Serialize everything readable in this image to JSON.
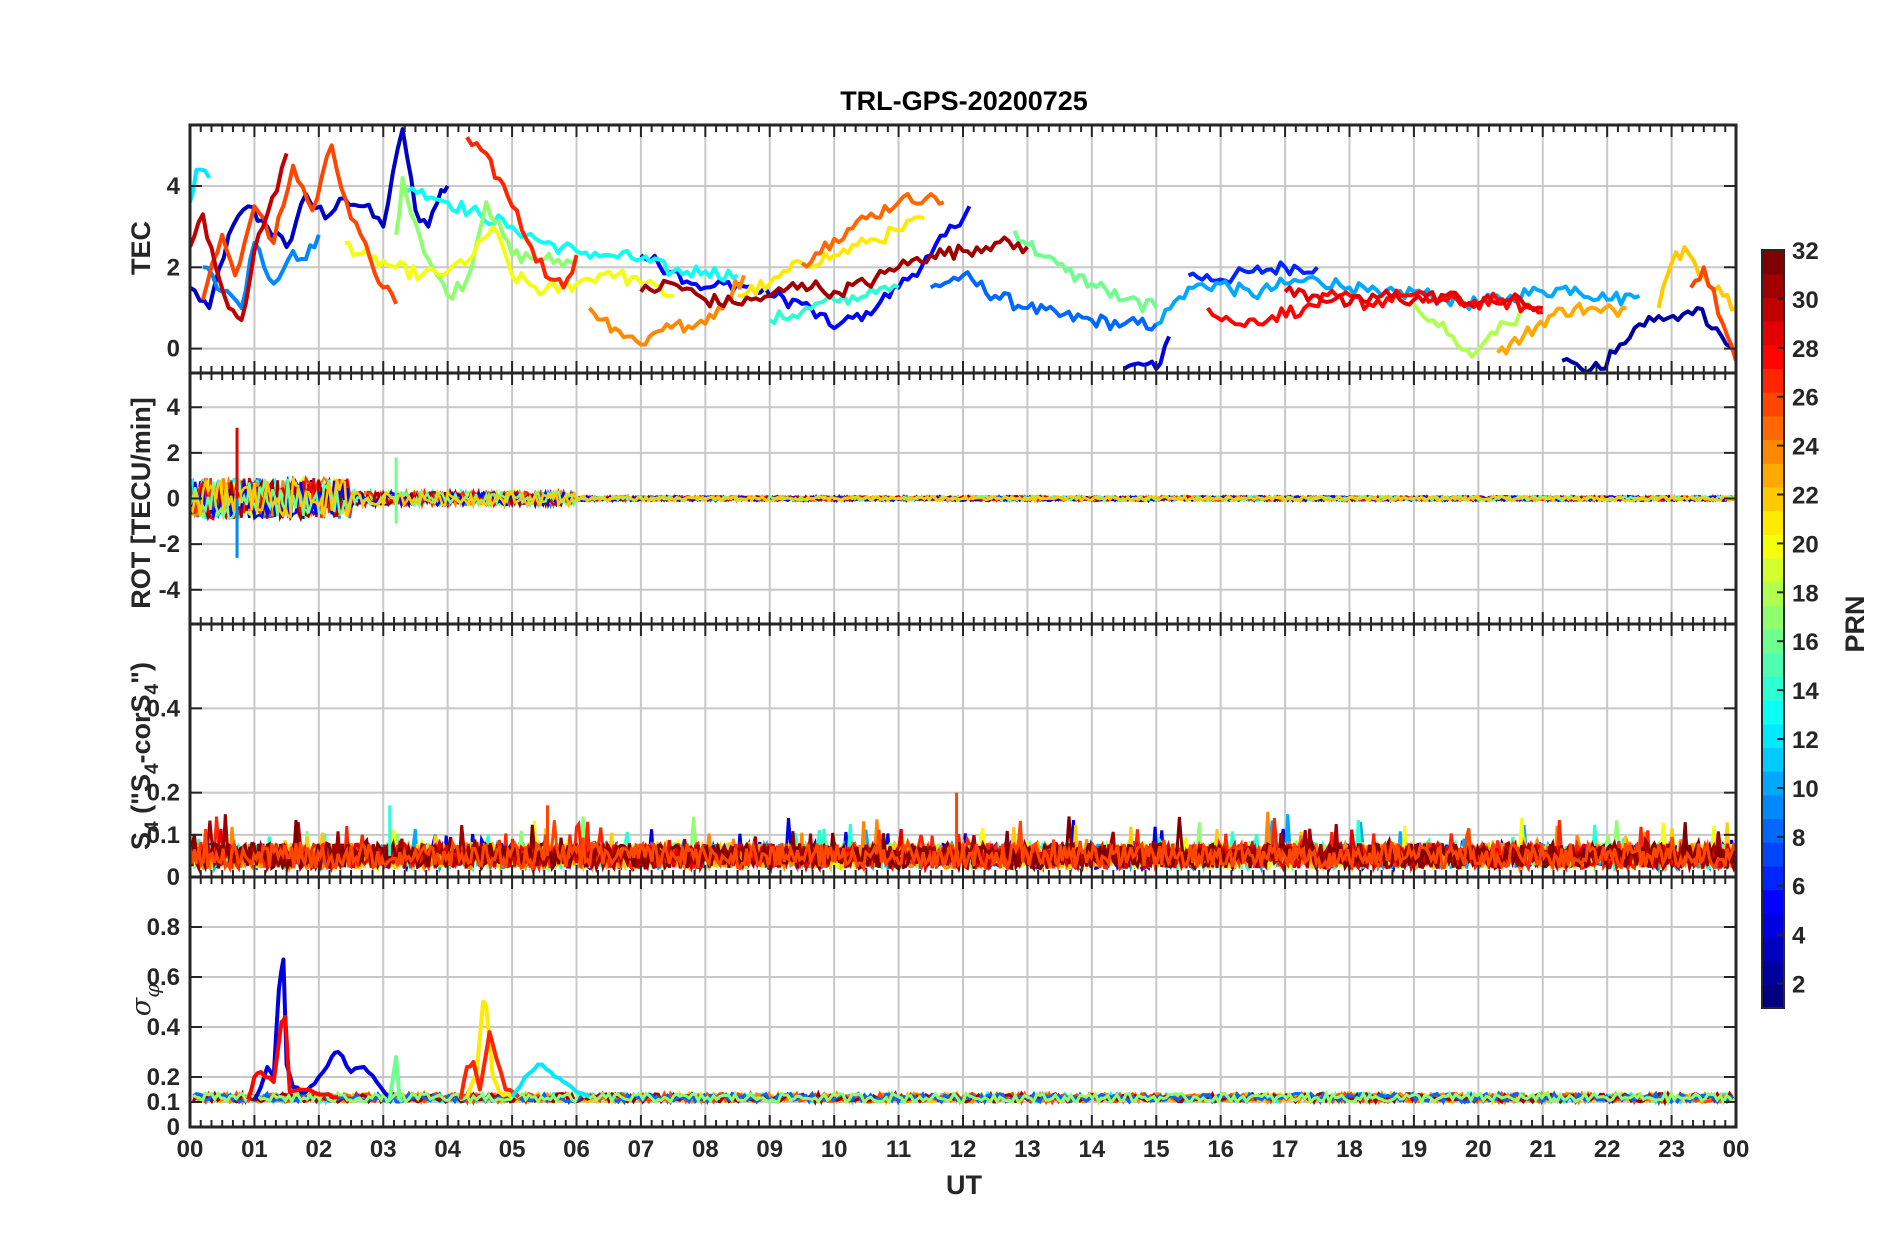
{
  "chart_data": {
    "type": "line",
    "title": "TRL-GPS-20200725",
    "xlabel": "UT",
    "x_tick_labels": [
      "00",
      "01",
      "02",
      "03",
      "04",
      "05",
      "06",
      "07",
      "08",
      "09",
      "10",
      "11",
      "12",
      "13",
      "14",
      "15",
      "16",
      "17",
      "18",
      "19",
      "20",
      "21",
      "22",
      "23",
      "00"
    ],
    "xlim": [
      0,
      24
    ],
    "grid": true,
    "panels": [
      {
        "id": "tec",
        "ylabel": "TEC",
        "ylim": [
          -0.6,
          5.5
        ],
        "yticks": [
          0,
          2,
          4
        ],
        "tick_labels": [
          "0",
          "2",
          "4"
        ],
        "series": [
          {
            "prn": 3,
            "x": [
              0.0,
              0.3,
              0.6,
              0.9,
              1.2,
              1.5,
              1.8,
              2.1,
              2.4,
              2.7,
              3.0,
              3.3,
              3.5,
              3.7,
              3.9,
              4.0
            ],
            "y": [
              1.5,
              1.0,
              2.8,
              3.5,
              3.0,
              2.5,
              3.8,
              3.2,
              3.7,
              3.5,
              3.0,
              5.4,
              3.4,
              3.0,
              3.9,
              4.0
            ]
          },
          {
            "prn": 5,
            "x": [
              7.0,
              7.5,
              8.0,
              8.5,
              9.0,
              9.5,
              10.0,
              10.5,
              11.0,
              11.5,
              12.1
            ],
            "y": [
              2.3,
              1.9,
              1.5,
              1.6,
              1.3,
              1.1,
              0.5,
              0.9,
              1.5,
              2.3,
              3.5
            ]
          },
          {
            "prn": 4,
            "x": [
              14.5,
              14.8,
              15.0,
              15.2
            ],
            "y": [
              -0.5,
              -0.4,
              -0.5,
              0.3
            ]
          },
          {
            "prn": 6,
            "x": [
              15.5,
              16.0,
              16.5,
              17.0,
              17.5
            ],
            "y": [
              1.8,
              1.7,
              1.9,
              2.0,
              2.0
            ]
          },
          {
            "prn": 2,
            "x": [
              21.3,
              21.6,
              21.9,
              22.2,
              22.5,
              22.8,
              23.1,
              23.4,
              23.7,
              24.0
            ],
            "y": [
              -0.3,
              -0.5,
              -0.5,
              0.1,
              0.6,
              0.8,
              0.7,
              1.0,
              0.5,
              -0.2
            ]
          },
          {
            "prn": 8,
            "x": [
              11.5,
              12.0,
              12.5,
              13.0,
              13.5,
              14.0,
              14.5,
              15.0
            ],
            "y": [
              1.5,
              1.8,
              1.3,
              1.0,
              0.8,
              0.7,
              0.6,
              0.6
            ]
          },
          {
            "prn": 9,
            "x": [
              0.2,
              0.5,
              0.8,
              1.0,
              1.3,
              1.6,
              1.8,
              2.0
            ],
            "y": [
              2.0,
              1.4,
              1.0,
              2.6,
              1.6,
              2.4,
              2.2,
              2.8
            ]
          },
          {
            "prn": 10,
            "x": [
              15.0,
              15.5,
              16.0,
              16.5,
              17.0,
              17.5,
              18.0,
              18.5,
              19.0,
              19.5,
              20.0,
              20.5,
              21.0,
              21.5,
              22.0,
              22.5
            ],
            "y": [
              0.6,
              1.5,
              1.6,
              1.3,
              1.6,
              1.7,
              1.5,
              1.3,
              1.4,
              1.2,
              1.1,
              1.3,
              1.4,
              1.5,
              1.2,
              1.3
            ]
          },
          {
            "prn": 12,
            "x": [
              0.0,
              0.1,
              0.3
            ],
            "y": [
              3.6,
              4.4,
              4.2
            ]
          },
          {
            "prn": 13,
            "x": [
              3.3,
              3.6,
              4.0,
              4.5,
              5.0,
              5.5,
              6.0,
              6.5,
              7.0,
              7.5,
              8.0,
              8.5
            ],
            "y": [
              4.0,
              3.9,
              3.6,
              3.3,
              3.0,
              2.6,
              2.4,
              2.3,
              2.2,
              1.9,
              1.9,
              1.8
            ]
          },
          {
            "prn": 14,
            "x": [
              9.0,
              9.5,
              10.0,
              10.5,
              11.0
            ],
            "y": [
              0.7,
              0.9,
              1.2,
              1.3,
              1.5
            ]
          },
          {
            "prn": 17,
            "x": [
              3.2,
              3.3,
              3.5,
              3.7,
              4.0,
              4.3,
              4.6,
              5.0,
              5.5,
              6.0
            ],
            "y": [
              2.8,
              4.2,
              3.1,
              2.2,
              1.3,
              1.7,
              3.6,
              2.3,
              2.2,
              2.1
            ]
          },
          {
            "prn": 16,
            "x": [
              12.8,
              13.2,
              13.6,
              14.0,
              14.5,
              15.0
            ],
            "y": [
              2.9,
              2.3,
              1.9,
              1.6,
              1.2,
              1.0
            ]
          },
          {
            "prn": 18,
            "x": [
              19.0,
              19.3,
              19.6,
              19.9,
              20.2,
              20.5,
              20.8
            ],
            "y": [
              1.1,
              0.7,
              0.3,
              -0.2,
              0.4,
              0.6,
              1.1
            ]
          },
          {
            "prn": 20,
            "x": [
              2.4,
              2.8,
              3.2,
              3.6,
              4.0,
              4.4,
              4.7,
              5.0,
              5.5,
              6.0,
              6.5,
              7.0,
              7.5
            ],
            "y": [
              2.6,
              2.2,
              2.0,
              1.8,
              1.9,
              2.3,
              3.0,
              1.8,
              1.4,
              1.6,
              1.9,
              1.6,
              1.3
            ]
          },
          {
            "prn": 21,
            "x": [
              8.5,
              9.0,
              9.5,
              10.0,
              10.5,
              11.0,
              11.4
            ],
            "y": [
              1.3,
              1.6,
              2.1,
              2.3,
              2.6,
              2.9,
              3.2
            ]
          },
          {
            "prn": 22,
            "x": [
              22.8,
              23.0,
              23.2,
              23.5,
              23.8,
              24.0
            ],
            "y": [
              1.0,
              2.1,
              2.5,
              1.8,
              1.3,
              1.0
            ]
          },
          {
            "prn": 24,
            "x": [
              6.2,
              6.6,
              7.0,
              7.4,
              7.8,
              8.2,
              8.6
            ],
            "y": [
              1.0,
              0.5,
              0.1,
              0.6,
              0.5,
              1.0,
              1.8
            ]
          },
          {
            "prn": 23,
            "x": [
              20.3,
              20.7,
              21.1,
              21.5,
              21.9,
              22.3
            ],
            "y": [
              -0.1,
              0.3,
              0.8,
              1.0,
              0.9,
              1.0
            ]
          },
          {
            "prn": 25,
            "x": [
              9.5,
              10.0,
              10.5,
              11.0,
              11.5,
              11.7
            ],
            "y": [
              2.1,
              2.7,
              3.2,
              3.6,
              3.8,
              3.6
            ]
          },
          {
            "prn": 26,
            "x": [
              0.2,
              0.5,
              0.7,
              1.0,
              1.3,
              1.6,
              1.9,
              2.2,
              2.5,
              2.8,
              3.0,
              3.2
            ],
            "y": [
              1.2,
              2.8,
              1.8,
              3.5,
              2.6,
              4.5,
              3.4,
              5.0,
              3.2,
              2.2,
              1.5,
              1.1
            ]
          },
          {
            "prn": 27,
            "x": [
              4.3,
              4.6,
              5.0,
              5.3,
              5.6,
              5.8,
              6.0
            ],
            "y": [
              5.2,
              4.8,
              3.5,
              2.5,
              1.7,
              1.5,
              2.3
            ]
          },
          {
            "prn": 28,
            "x": [
              15.8,
              16.3,
              16.8,
              17.3,
              17.8,
              18.3,
              18.8,
              19.3,
              19.8,
              20.3,
              20.8,
              21.0
            ],
            "y": [
              1.0,
              0.6,
              0.8,
              1.0,
              1.3,
              1.1,
              1.3,
              1.2,
              1.1,
              1.2,
              1.0,
              0.9
            ]
          },
          {
            "prn": 26,
            "x": [
              23.3,
              23.5,
              23.8,
              24.0
            ],
            "y": [
              1.5,
              2.0,
              0.6,
              -0.3
            ]
          },
          {
            "prn": 30,
            "x": [
              0.0,
              0.2,
              0.4,
              0.6,
              0.8,
              1.0,
              1.2,
              1.5
            ],
            "y": [
              2.5,
              3.3,
              2.0,
              1.0,
              0.7,
              2.4,
              3.3,
              4.8
            ]
          },
          {
            "prn": 31,
            "x": [
              7.0,
              7.5,
              8.0,
              8.5,
              9.0,
              9.5,
              10.0,
              10.5,
              11.0,
              11.5,
              12.0,
              12.5,
              13.0
            ],
            "y": [
              1.4,
              1.6,
              1.2,
              1.1,
              1.3,
              1.6,
              1.4,
              1.6,
              2.0,
              2.3,
              2.4,
              2.6,
              2.5
            ]
          },
          {
            "prn": 29,
            "x": [
              17.0,
              17.5,
              18.0,
              18.5,
              19.0,
              19.5,
              20.0,
              20.5,
              21.0
            ],
            "y": [
              1.4,
              1.3,
              1.1,
              1.3,
              1.2,
              1.3,
              1.1,
              1.2,
              1.0
            ]
          }
        ]
      },
      {
        "id": "rot",
        "ylabel": "ROT [TECU/min]",
        "ylim": [
          -5.5,
          5.5
        ],
        "yticks": [
          -4,
          -2,
          0,
          2,
          4
        ],
        "tick_labels": [
          "-4",
          "-2",
          "0",
          "2",
          "4"
        ],
        "note_spikes": [
          {
            "prn": 29,
            "x": 0.73,
            "y": 3.1
          },
          {
            "prn": 9,
            "x": 0.73,
            "y": -2.6
          },
          {
            "prn": 16,
            "x": 3.2,
            "y": 1.8
          },
          {
            "prn": 16,
            "x": 3.2,
            "y": -1.1
          }
        ]
      },
      {
        "id": "s4",
        "ylabel": "S4 (\"S4-corS4\")",
        "ylim": [
          0,
          0.6
        ],
        "yticks": [
          0,
          0.1,
          0.2,
          0.4
        ],
        "tick_labels": [
          "0",
          "0.1",
          "0.2",
          "0.4"
        ],
        "baseline": 0.05,
        "band": 0.06,
        "notable_peaks": [
          {
            "prn": 26,
            "x": 11.9,
            "y": 0.2
          },
          {
            "prn": 26,
            "x": 5.55,
            "y": 0.17
          },
          {
            "prn": 14,
            "x": 3.1,
            "y": 0.17
          }
        ]
      },
      {
        "id": "sigma_phi",
        "ylabel": "σ φ",
        "ylim": [
          0,
          1.0
        ],
        "yticks": [
          0,
          0.1,
          0.2,
          0.4,
          0.6,
          0.8
        ],
        "tick_labels": [
          "0",
          "0.1",
          "0.2",
          "0.4",
          "0.6",
          "0.8"
        ],
        "baseline": 0.11,
        "series": [
          {
            "prn": 4,
            "x": [
              1.0,
              1.1,
              1.2,
              1.3,
              1.38,
              1.45,
              1.5,
              1.6,
              1.8,
              2.0,
              2.2,
              2.3,
              2.5,
              2.7,
              2.9,
              3.1
            ],
            "y": [
              0.11,
              0.16,
              0.24,
              0.2,
              0.55,
              0.67,
              0.25,
              0.16,
              0.14,
              0.2,
              0.28,
              0.3,
              0.22,
              0.24,
              0.18,
              0.12
            ]
          },
          {
            "prn": 28,
            "x": [
              0.9,
              1.0,
              1.1,
              1.3,
              1.42,
              1.48,
              1.55,
              1.7,
              2.0,
              2.3
            ],
            "y": [
              0.11,
              0.2,
              0.22,
              0.18,
              0.42,
              0.44,
              0.14,
              0.15,
              0.13,
              0.12
            ]
          },
          {
            "prn": 21,
            "x": [
              4.3,
              4.45,
              4.55,
              4.6,
              4.7,
              4.8,
              5.0
            ],
            "y": [
              0.12,
              0.22,
              0.5,
              0.48,
              0.2,
              0.14,
              0.12
            ]
          },
          {
            "prn": 27,
            "x": [
              4.2,
              4.3,
              4.4,
              4.5,
              4.6,
              4.65,
              4.75,
              4.9,
              5.1
            ],
            "y": [
              0.11,
              0.24,
              0.26,
              0.15,
              0.3,
              0.38,
              0.28,
              0.15,
              0.12
            ]
          },
          {
            "prn": 12,
            "x": [
              5.0,
              5.2,
              5.4,
              5.6,
              5.8,
              6.0,
              6.2
            ],
            "y": [
              0.12,
              0.2,
              0.25,
              0.22,
              0.18,
              0.14,
              0.12
            ]
          },
          {
            "prn": 16,
            "x": [
              3.1,
              3.2,
              3.25,
              3.3
            ],
            "y": [
              0.11,
              0.28,
              0.12,
              0.11
            ]
          }
        ]
      }
    ],
    "colorbar": {
      "label": "PRN",
      "range": [
        1,
        32
      ],
      "ticks": [
        2,
        4,
        6,
        8,
        10,
        12,
        14,
        16,
        18,
        20,
        22,
        24,
        26,
        28,
        30,
        32
      ],
      "tick_labels": [
        "2",
        "4",
        "6",
        "8",
        "10",
        "12",
        "14",
        "16",
        "18",
        "20",
        "22",
        "24",
        "26",
        "28",
        "30",
        "32"
      ],
      "colormap": "jet"
    }
  }
}
